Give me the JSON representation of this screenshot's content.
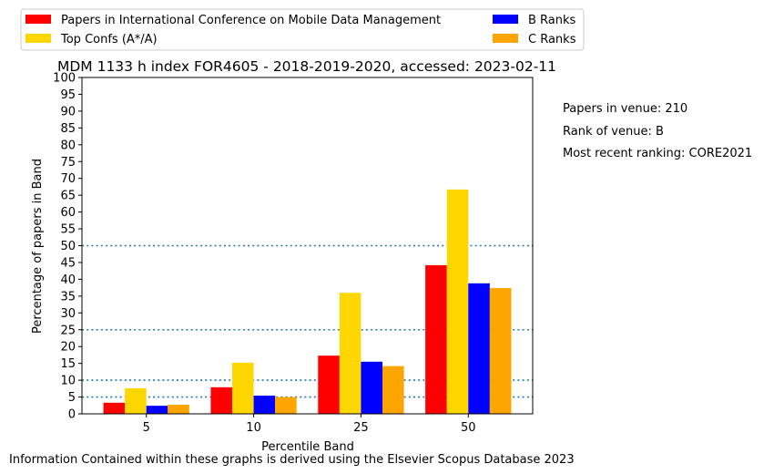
{
  "chart_data": {
    "type": "bar",
    "title": "MDM 1133 h index FOR4605 - 2018-2019-2020, accessed: 2023-02-11",
    "xlabel": "Percentile Band",
    "ylabel": "Percentage of papers in Band",
    "categories": [
      "5",
      "10",
      "25",
      "50"
    ],
    "ylim": [
      0,
      100
    ],
    "yticks": [
      0,
      5,
      10,
      15,
      20,
      25,
      30,
      35,
      40,
      45,
      50,
      55,
      60,
      65,
      70,
      75,
      80,
      85,
      90,
      95,
      100
    ],
    "reference_lines": [
      5,
      10,
      25,
      50
    ],
    "grid": false,
    "legend_position": "top, above plot, two columns",
    "series": [
      {
        "name": "Papers in International Conference on Mobile Data Management",
        "color": "#ff0000",
        "values": [
          3.3,
          7.9,
          17.3,
          44.2
        ]
      },
      {
        "name": "Top Confs (A*/A)",
        "color": "#ffd700",
        "values": [
          7.6,
          15.2,
          36.0,
          66.7
        ]
      },
      {
        "name": "B Ranks",
        "color": "#0000ff",
        "values": [
          2.4,
          5.4,
          15.5,
          38.8
        ]
      },
      {
        "name": "C Ranks",
        "color": "#ffa500",
        "values": [
          2.7,
          5.0,
          14.2,
          37.4
        ]
      }
    ]
  },
  "side_info": {
    "papers_in_venue": "Papers in venue: 210",
    "rank_of_venue": "Rank of venue: B",
    "most_recent_ranking": "Most recent ranking: CORE2021"
  },
  "footer": "Information Contained within these graphs is derived using the Elsevier Scopus Database 2023"
}
